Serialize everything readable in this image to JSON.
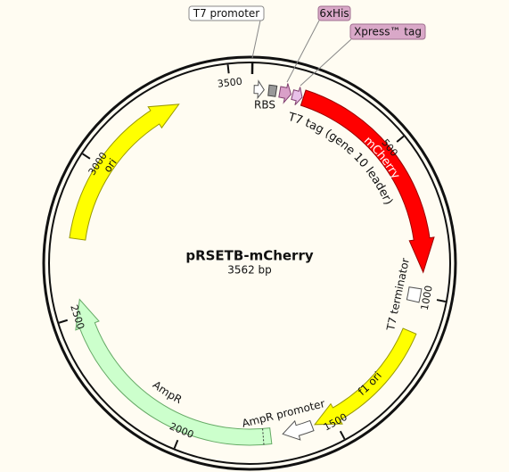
{
  "title": "pRSETB-mCherry",
  "size": {
    "value": 3562,
    "label": "3562 bp"
  },
  "ticks": [
    500,
    1000,
    1500,
    2000,
    2500,
    3000,
    3500
  ],
  "labels": {
    "t7_promoter": "T7 promoter",
    "his": "6xHis",
    "xpress": "Xpress™ tag",
    "rbs": "RBS",
    "t7_tag": "T7 tag (gene 10 leader)",
    "mcherry": "mCherry",
    "t7_terminator": "T7 terminator",
    "f1_ori": "f1 ori",
    "ampr_promoter": "AmpR promoter",
    "ampr": "AmpR",
    "ori": "ori"
  }
}
